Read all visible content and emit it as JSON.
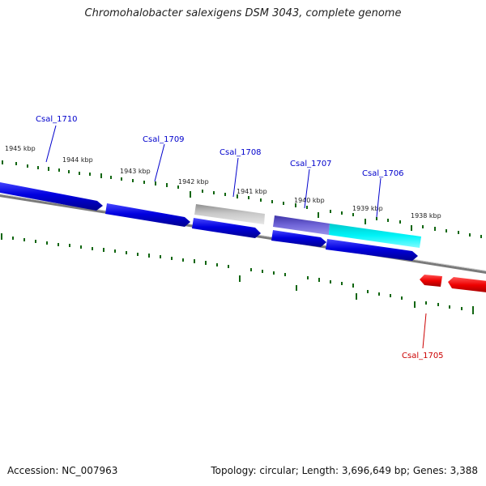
{
  "title": "Chromohalobacter salexigens DSM 3043, complete genome",
  "footer": {
    "accession": "Accession: NC_007963",
    "summary": "Topology: circular; Length: 3,696,649 bp; Genes: 3,388"
  },
  "colors": {
    "forward_cds": "#0a0adf",
    "reverse_cds": "#ee0000",
    "gray_feature": "#a8a8a8",
    "purple_feature": "#6a5fd0",
    "cyan_feature": "#00e8ee",
    "ticks": "#116611",
    "backbone": "#7a7a7a"
  },
  "kbp_labels": [
    "1945 kbp",
    "1944 kbp",
    "1943 kbp",
    "1942 kbp",
    "1941 kbp",
    "1940 kbp",
    "1939 kbp",
    "1938 kbp"
  ],
  "gene_labels": [
    "Csal_1710",
    "Csal_1709",
    "Csal_1708",
    "Csal_1707",
    "Csal_1706",
    "Csal_1705"
  ]
}
